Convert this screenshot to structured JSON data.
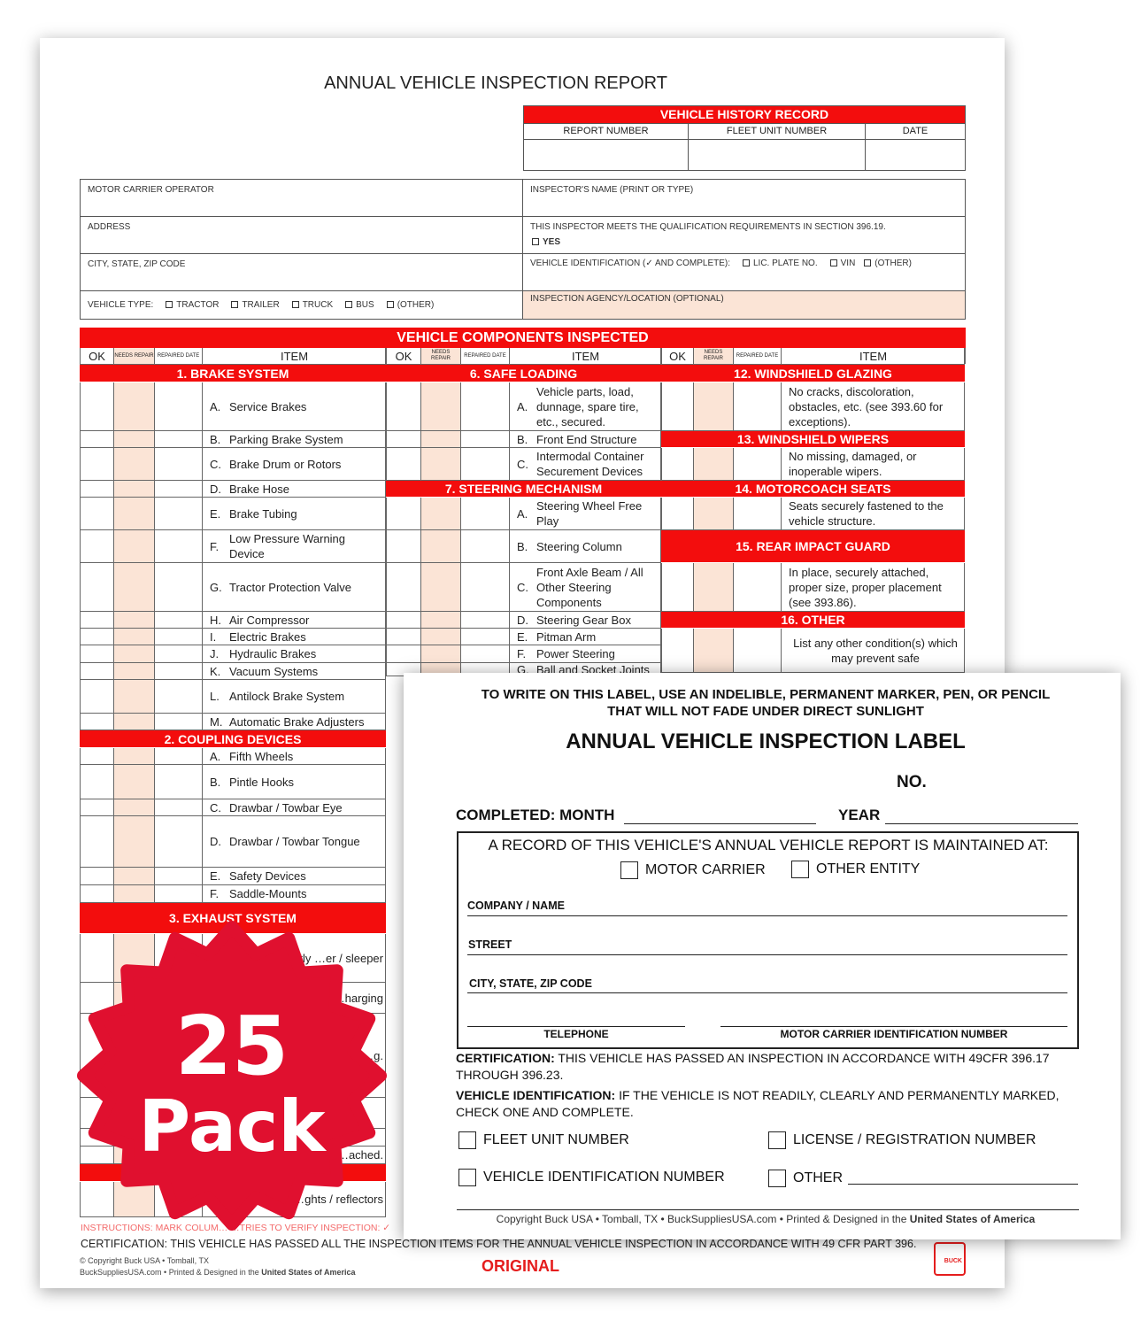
{
  "report": {
    "title": "ANNUAL VEHICLE INSPECTION REPORT",
    "history": {
      "title": "VEHICLE HISTORY RECORD",
      "columns": [
        "REPORT NUMBER",
        "FLEET UNIT NUMBER",
        "DATE"
      ]
    },
    "fields": {
      "motor_carrier": "MOTOR CARRIER OPERATOR",
      "inspector_name": "INSPECTOR'S NAME (PRINT OR TYPE)",
      "address": "ADDRESS",
      "qualification": "THIS INSPECTOR MEETS THE QUALIFICATION REQUIREMENTS IN SECTION 396.19.",
      "yes": "YES",
      "city": "CITY, STATE, ZIP CODE",
      "vehicle_id": "VEHICLE IDENTIFICATION (✓ AND COMPLETE):",
      "vehicle_id_options": [
        "LIC. PLATE NO.",
        "VIN",
        "(OTHER)"
      ],
      "vehicle_type": "VEHICLE TYPE:",
      "vehicle_type_options": [
        "TRACTOR",
        "TRAILER",
        "TRUCK",
        "BUS",
        "(OTHER)"
      ],
      "agency": "INSPECTION AGENCY/LOCATION (OPTIONAL)"
    },
    "components_title": "VEHICLE COMPONENTS INSPECTED",
    "col_headers": {
      "ok": "OK",
      "needs": "NEEDS REPAIR",
      "repaired": "REPAIRED DATE",
      "item": "ITEM"
    },
    "columns": [
      {
        "rows": [
          {
            "type": "section",
            "text": "1. BRAKE SYSTEM"
          },
          {
            "letter": "A.",
            "text": "Service Brakes"
          },
          {
            "letter": "B.",
            "text": "Parking Brake System"
          },
          {
            "letter": "C.",
            "text": "Brake Drum or Rotors"
          },
          {
            "letter": "D.",
            "text": "Brake Hose"
          },
          {
            "letter": "E.",
            "text": "Brake Tubing"
          },
          {
            "letter": "F.",
            "text": "Low Pressure Warning Device"
          },
          {
            "letter": "G.",
            "text": "Tractor Protection Valve"
          },
          {
            "letter": "H.",
            "text": "Air Compressor"
          },
          {
            "letter": "I.",
            "text": "Electric Brakes"
          },
          {
            "letter": "J.",
            "text": "Hydraulic Brakes"
          },
          {
            "letter": "K.",
            "text": "Vacuum Systems"
          },
          {
            "letter": "L.",
            "text": "Antilock Brake System"
          },
          {
            "letter": "M.",
            "text": "Automatic Brake Adjusters"
          },
          {
            "type": "section",
            "text": "2. COUPLING DEVICES"
          },
          {
            "letter": "A.",
            "text": "Fifth Wheels"
          },
          {
            "letter": "B.",
            "text": "Pintle Hooks"
          },
          {
            "letter": "C.",
            "text": "Drawbar / Towbar Eye"
          },
          {
            "letter": "D.",
            "text": "Drawbar / Towbar Tongue"
          },
          {
            "letter": "E.",
            "text": "Safety Devices"
          },
          {
            "letter": "F.",
            "text": "Saddle-Mounts"
          },
          {
            "type": "section",
            "text": "3. EXHAUST SYSTEM"
          },
          {
            "letter": "",
            "text": "…ward of / directly …er / sleeper",
            "align": "right"
          },
          {
            "letter": "",
            "text": "…harging",
            "align": "right"
          },
          {
            "letter": "",
            "text": "…g.",
            "align": "right"
          },
          {
            "letter": "",
            "text": ""
          },
          {
            "letter": "",
            "text": ""
          },
          {
            "letter": "",
            "text": "…ached.",
            "align": "right"
          },
          {
            "type": "section",
            "text": ""
          },
          {
            "letter": "",
            "text": "…ghts / reflectors",
            "align": "right"
          }
        ]
      },
      {
        "rows": [
          {
            "type": "section",
            "text": "6. SAFE LOADING"
          },
          {
            "letter": "A.",
            "text": "Vehicle parts, load, dunnage, spare tire, etc., secured."
          },
          {
            "letter": "B.",
            "text": "Front End Structure"
          },
          {
            "letter": "C.",
            "text": "Intermodal Container Securement Devices"
          },
          {
            "type": "section",
            "text": "7. STEERING MECHANISM"
          },
          {
            "letter": "A.",
            "text": "Steering Wheel Free Play"
          },
          {
            "letter": "B.",
            "text": "Steering Column"
          },
          {
            "letter": "C.",
            "text": "Front Axle Beam / All Other Steering Components"
          },
          {
            "letter": "D.",
            "text": "Steering Gear Box"
          },
          {
            "letter": "E.",
            "text": "Pitman Arm"
          },
          {
            "letter": "F.",
            "text": "Power Steering"
          },
          {
            "letter": "G.",
            "text": "Ball and Socket Joints"
          }
        ]
      },
      {
        "rows": [
          {
            "type": "section",
            "text": "12. WINDSHIELD GLAZING"
          },
          {
            "letter": "",
            "text": "No cracks, discoloration, obstacles, etc. (see 393.60 for exceptions)."
          },
          {
            "type": "section",
            "text": "13. WINDSHIELD WIPERS"
          },
          {
            "letter": "",
            "text": "No missing, damaged, or inoperable wipers."
          },
          {
            "type": "section",
            "text": "14. MOTORCOACH SEATS"
          },
          {
            "letter": "",
            "text": "Seats securely fastened to the vehicle structure."
          },
          {
            "type": "section",
            "text": "15. REAR IMPACT GUARD"
          },
          {
            "letter": "",
            "text": "In place, securely attached, proper size, proper placement (see 393.86)."
          },
          {
            "type": "section",
            "text": "16. OTHER"
          },
          {
            "letter": "",
            "text": "List any other condition(s) which may prevent safe",
            "align": "center"
          }
        ]
      }
    ],
    "instructions": "INSTRUCTIONS: MARK COLUM… …TRIES TO VERIFY INSPECTION:  ✓",
    "certification": "CERTIFICATION: THIS VEHICLE HAS PASSED ALL THE INSPECTION ITEMS FOR THE ANNUAL VEHICLE INSPECTION IN ACCORDANCE WITH 49 CFR PART 396.",
    "copyright_1": "© Copyright Buck USA • Tomball, TX",
    "copyright_2": "BuckSuppliesUSA.com • Printed & Designed in the",
    "copyright_2_bold": "United States of America",
    "copy_type": "ORIGINAL",
    "logo_text": "BUCK"
  },
  "label": {
    "instruction_1": "TO WRITE ON THIS LABEL, USE AN INDELIBLE, PERMANENT MARKER, PEN, OR PENCIL",
    "instruction_2": "THAT WILL NOT FADE UNDER DIRECT SUNLIGHT",
    "title": "ANNUAL VEHICLE INSPECTION LABEL",
    "no": "NO.",
    "completed_month": "COMPLETED: MONTH",
    "year": "YEAR",
    "record_text": "A RECORD OF THIS VEHICLE'S ANNUAL VEHICLE REPORT IS MAINTAINED AT:",
    "motor_carrier": "MOTOR CARRIER",
    "other_entity": "OTHER ENTITY",
    "company": "COMPANY / NAME",
    "street": "STREET",
    "city": "CITY, STATE, ZIP CODE",
    "telephone": "TELEPHONE",
    "mc_id": "MOTOR CARRIER IDENTIFICATION NUMBER",
    "cert_label": "CERTIFICATION:",
    "cert_text": " THIS VEHICLE HAS PASSED AN INSPECTION IN ACCORDANCE WITH 49CFR 396.17 THROUGH 396.23.",
    "vid_label": "VEHICLE IDENTIFICATION:",
    "vid_text": " IF THE VEHICLE IS NOT READILY, CLEARLY AND PERMANENTLY MARKED, CHECK ONE AND COMPLETE.",
    "fleet_unit": "FLEET UNIT NUMBER",
    "license": "LICENSE / REGISTRATION NUMBER",
    "vin": "VEHICLE IDENTIFICATION NUMBER",
    "other": "OTHER",
    "copyright": "Copyright Buck USA • Tomball, TX • BuckSuppliesUSA.com • Printed & Designed in the",
    "copyright_bold": "United States of America"
  },
  "badge": {
    "number": "25",
    "word": "Pack",
    "color": "#e0102f"
  }
}
